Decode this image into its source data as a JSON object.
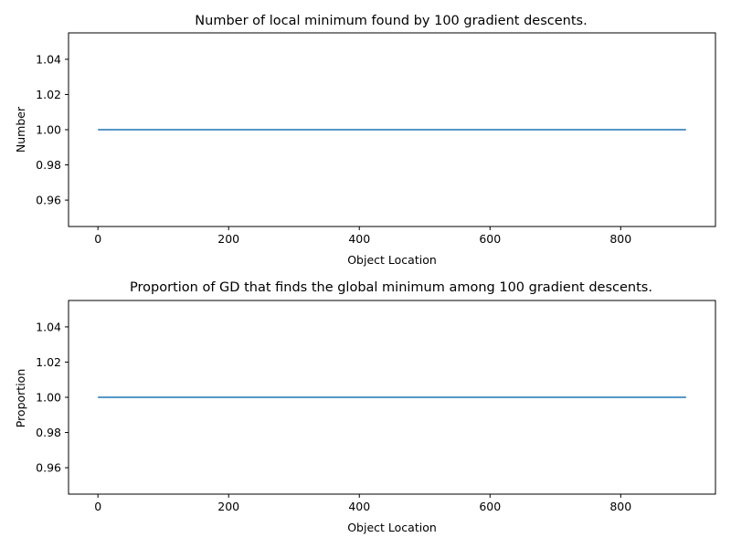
{
  "chart_data": [
    {
      "type": "line",
      "title": "Number of local minimum found by 100 gradient descents.",
      "xlabel": "Object Location",
      "ylabel": "Number",
      "xlim": [
        -45,
        945
      ],
      "ylim": [
        0.945,
        1.055
      ],
      "xticks": [
        0,
        200,
        400,
        600,
        800
      ],
      "yticks": [
        0.96,
        0.98,
        1.0,
        1.02,
        1.04
      ],
      "ytick_labels": [
        "0.96",
        "0.98",
        "1.00",
        "1.02",
        "1.04"
      ],
      "xtick_labels": [
        "0",
        "200",
        "400",
        "600",
        "800"
      ],
      "grid": false,
      "color": "#1f77b4",
      "series": [
        {
          "x": [
            0,
            900
          ],
          "y": [
            1.0,
            1.0
          ]
        }
      ]
    },
    {
      "type": "line",
      "title": "Proportion of GD that finds the global minimum among 100 gradient descents.",
      "xlabel": "Object Location",
      "ylabel": "Proportion",
      "xlim": [
        -45,
        945
      ],
      "ylim": [
        0.945,
        1.055
      ],
      "xticks": [
        0,
        200,
        400,
        600,
        800
      ],
      "yticks": [
        0.96,
        0.98,
        1.0,
        1.02,
        1.04
      ],
      "ytick_labels": [
        "0.96",
        "0.98",
        "1.00",
        "1.02",
        "1.04"
      ],
      "xtick_labels": [
        "0",
        "200",
        "400",
        "600",
        "800"
      ],
      "grid": false,
      "color": "#1f77b4",
      "series": [
        {
          "x": [
            0,
            900
          ],
          "y": [
            1.0,
            1.0
          ]
        }
      ]
    }
  ]
}
